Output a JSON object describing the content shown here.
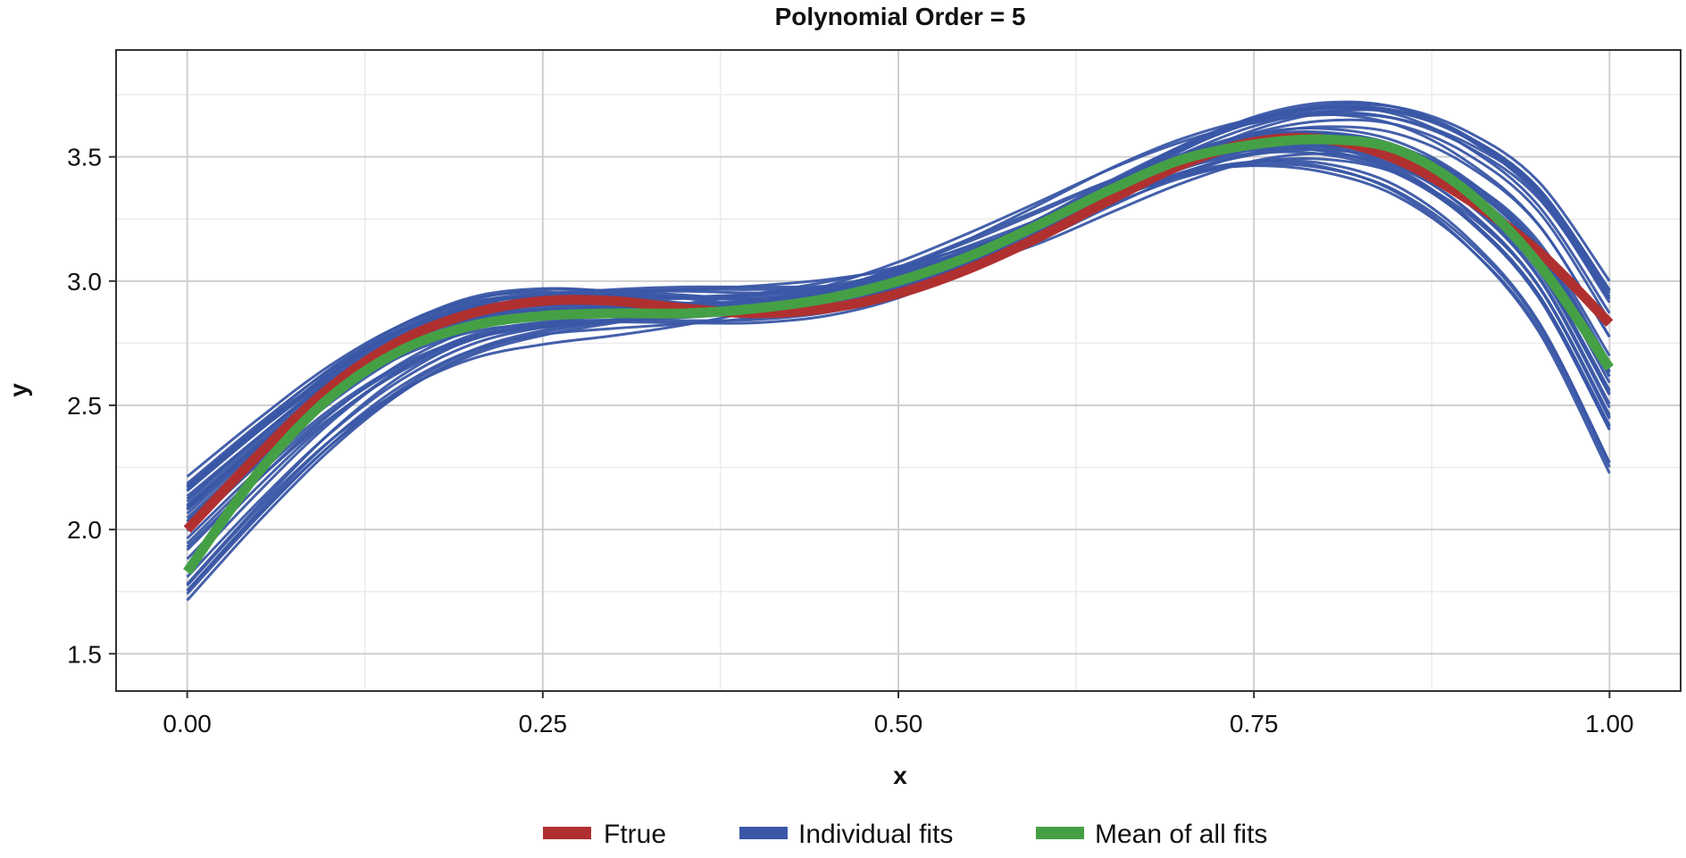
{
  "chart_data": {
    "type": "line",
    "title": "Polynomial Order = 5",
    "xlabel": "x",
    "ylabel": "y",
    "xlim": [
      -0.05,
      1.05
    ],
    "ylim": [
      1.35,
      3.93
    ],
    "x_ticks": [
      0.0,
      0.25,
      0.5,
      0.75,
      1.0
    ],
    "x_tick_labels": [
      "0.00",
      "0.25",
      "0.50",
      "0.75",
      "1.00"
    ],
    "y_ticks": [
      1.5,
      2.0,
      2.5,
      3.0,
      3.5
    ],
    "y_tick_labels": [
      "1.5",
      "2.0",
      "2.5",
      "3.0",
      "3.5"
    ],
    "grid": true,
    "legend_position": "bottom",
    "colors": {
      "ftrue": "#b03030",
      "fits": "#3a57a7",
      "mean": "#45a045"
    },
    "x": [
      0.0,
      0.05,
      0.1,
      0.15,
      0.2,
      0.25,
      0.3,
      0.35,
      0.4,
      0.45,
      0.5,
      0.55,
      0.6,
      0.65,
      0.7,
      0.75,
      0.8,
      0.85,
      0.9,
      0.95,
      1.0
    ],
    "series": [
      {
        "name": "Ftrue",
        "values": [
          2.0,
          2.3,
          2.57,
          2.76,
          2.87,
          2.92,
          2.92,
          2.89,
          2.87,
          2.89,
          2.95,
          3.05,
          3.18,
          3.33,
          3.47,
          3.56,
          3.57,
          3.49,
          3.33,
          3.12,
          2.83
        ]
      },
      {
        "name": "Individual fits",
        "values": [
          2.1,
          2.25,
          2.45,
          2.65,
          2.8,
          2.86,
          2.88,
          2.9,
          2.91,
          2.94,
          3.0,
          3.1,
          3.22,
          3.36,
          3.48,
          3.58,
          3.6,
          3.54,
          3.4,
          3.15,
          2.6
        ]
      },
      {
        "name": "Mean of all fits",
        "values": [
          1.83,
          2.23,
          2.53,
          2.72,
          2.82,
          2.86,
          2.87,
          2.87,
          2.89,
          2.93,
          3.0,
          3.1,
          3.23,
          3.37,
          3.49,
          3.55,
          3.57,
          3.53,
          3.36,
          3.07,
          2.65
        ]
      }
    ]
  }
}
